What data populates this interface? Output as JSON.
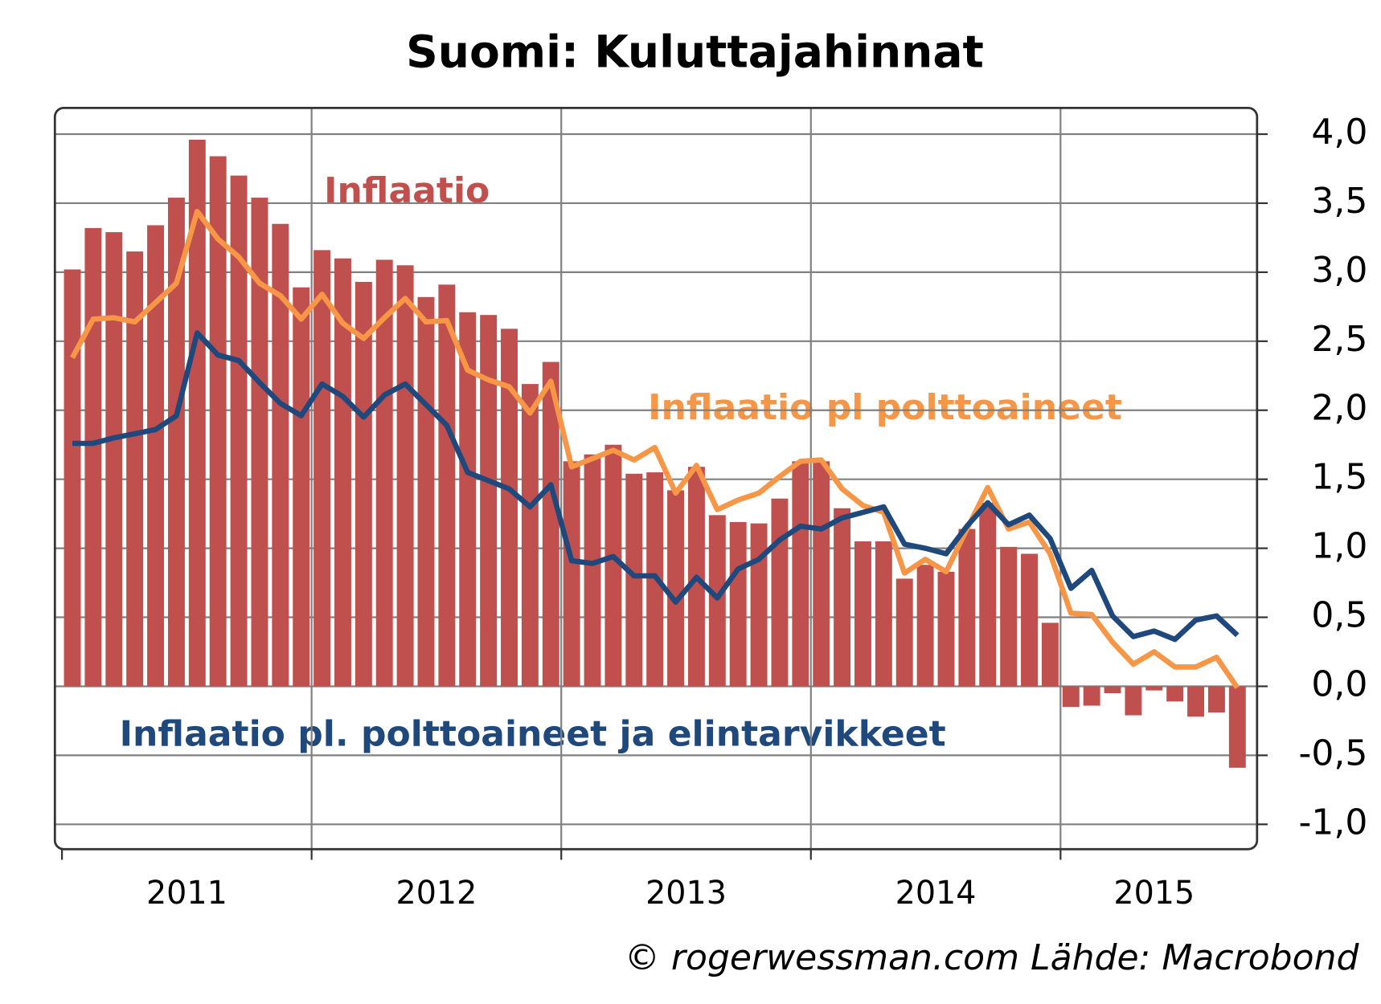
{
  "chart_data": {
    "type": "bar-line",
    "title": "Suomi: Kuluttajahinnat",
    "source": "© rogerwessman.com Lähde: Macrobond",
    "xtick_labels": [
      "2011",
      "2012",
      "2013",
      "2014",
      "2015"
    ],
    "ylim": [
      -1.18,
      4.19
    ],
    "yticks": [
      {
        "value": -1,
        "label": "-1,0"
      },
      {
        "value": -0.5,
        "label": "-0,5"
      },
      {
        "value": 0,
        "label": "0,0"
      },
      {
        "value": 0.5,
        "label": "0,5"
      },
      {
        "value": 1,
        "label": "1,0"
      },
      {
        "value": 1.5,
        "label": "1,5"
      },
      {
        "value": 2,
        "label": "2,0"
      },
      {
        "value": 2.5,
        "label": "2,5"
      },
      {
        "value": 3,
        "label": "3,0"
      },
      {
        "value": 3.5,
        "label": "3,5"
      },
      {
        "value": 4,
        "label": "4,0"
      }
    ],
    "grid": true,
    "series": [
      {
        "name": "Inflaatio",
        "type": "bar",
        "color": "#c0504d",
        "values": [
          3.02,
          3.32,
          3.29,
          3.15,
          3.34,
          3.54,
          3.96,
          3.84,
          3.7,
          3.54,
          3.35,
          2.89,
          3.16,
          3.1,
          2.93,
          3.09,
          3.05,
          2.82,
          2.91,
          2.71,
          2.69,
          2.59,
          2.19,
          2.35,
          1.63,
          1.68,
          1.75,
          1.54,
          1.55,
          1.42,
          1.59,
          1.24,
          1.19,
          1.18,
          1.36,
          1.63,
          1.63,
          1.29,
          1.05,
          1.05,
          0.78,
          0.88,
          0.83,
          1.14,
          1.33,
          1.01,
          0.96,
          0.46,
          -0.15,
          -0.14,
          -0.05,
          -0.21,
          -0.03,
          -0.11,
          -0.22,
          -0.19,
          -0.59
        ]
      },
      {
        "name": "Inflaatio pl polttoaineet",
        "type": "line",
        "color": "#f79646",
        "values": [
          2.38,
          2.66,
          2.67,
          2.64,
          2.78,
          2.92,
          3.44,
          3.24,
          3.11,
          2.92,
          2.83,
          2.66,
          2.84,
          2.63,
          2.52,
          2.67,
          2.81,
          2.64,
          2.65,
          2.29,
          2.22,
          2.17,
          1.98,
          2.21,
          1.59,
          1.65,
          1.71,
          1.64,
          1.73,
          1.4,
          1.6,
          1.28,
          1.35,
          1.4,
          1.52,
          1.63,
          1.64,
          1.43,
          1.31,
          1.26,
          0.82,
          0.92,
          0.83,
          1.14,
          1.44,
          1.14,
          1.19,
          0.96,
          0.53,
          0.52,
          0.32,
          0.16,
          0.25,
          0.14,
          0.14,
          0.21,
          -0.01
        ]
      },
      {
        "name": "Inflaatio pl. polttoaineet ja elintarvikkeet",
        "type": "line",
        "color": "#1f497d",
        "values": [
          1.76,
          1.76,
          1.8,
          1.83,
          1.86,
          1.96,
          2.56,
          2.4,
          2.36,
          2.2,
          2.05,
          1.96,
          2.19,
          2.1,
          1.95,
          2.11,
          2.19,
          2.04,
          1.89,
          1.55,
          1.49,
          1.43,
          1.3,
          1.46,
          0.91,
          0.89,
          0.94,
          0.8,
          0.8,
          0.61,
          0.79,
          0.64,
          0.85,
          0.92,
          1.06,
          1.16,
          1.14,
          1.22,
          1.26,
          1.3,
          1.03,
          1.0,
          0.96,
          1.16,
          1.33,
          1.17,
          1.24,
          1.07,
          0.71,
          0.84,
          0.51,
          0.36,
          0.4,
          0.34,
          0.48,
          0.51,
          0.37
        ]
      }
    ]
  }
}
